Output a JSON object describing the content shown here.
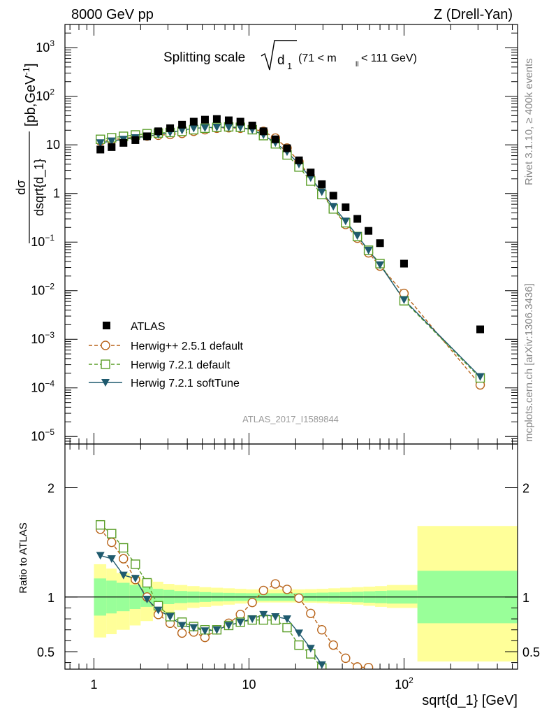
{
  "header": {
    "left": "8000 GeV pp",
    "right": "Z (Drell-Yan)"
  },
  "side_labels": {
    "rivet": "Rivet 3.1.10, ≥ 400k events",
    "mcplots": "mcplots.cern.ch [arXiv:1306.3436]"
  },
  "plot_title": {
    "prefix": "Splitting scale",
    "var": "d",
    "var_sub": "1",
    "range_open": "(71 < m",
    "range_sub": "ll",
    "range_close": " < 111 GeV)"
  },
  "analysis_id": "ATLAS_2017_I1589844",
  "colors": {
    "atlas": "#000000",
    "herwigpp": "#b8641a",
    "herwig721": "#5a9e28",
    "softtune": "#1f5a6e",
    "band_inner": "#99ff99",
    "band_outer": "#ffff99"
  },
  "chart_data": [
    {
      "type": "scatter",
      "panel": "main",
      "xlabel": "sqrt{d_1} [GeV]",
      "ylabel_num": "dσ",
      "ylabel_den": "dsqrt{d_1}",
      "ylabel_unit": "[pb,GeV",
      "ylabel_unit_sup": "-1",
      "ylabel_unit_close": "]",
      "xscale": "log",
      "yscale": "log",
      "xlim": [
        0.65,
        540
      ],
      "ylim": [
        7e-06,
        3000
      ],
      "x_ticks": [
        {
          "value": 1,
          "label": "1"
        },
        {
          "value": 10,
          "label": "10"
        },
        {
          "value": 100,
          "label": "10",
          "sup": "2"
        }
      ],
      "y_ticks": [
        {
          "value": 1e-05,
          "base": "10",
          "sup": "−5"
        },
        {
          "value": 0.0001,
          "base": "10",
          "sup": "−4"
        },
        {
          "value": 0.001,
          "base": "10",
          "sup": "−3"
        },
        {
          "value": 0.01,
          "base": "10",
          "sup": "−2"
        },
        {
          "value": 0.1,
          "base": "10",
          "sup": "−1"
        },
        {
          "value": 1,
          "base": "1",
          "sup": ""
        },
        {
          "value": 10,
          "base": "10",
          "sup": ""
        },
        {
          "value": 100,
          "base": "10",
          "sup": "2"
        },
        {
          "value": 1000,
          "base": "10",
          "sup": "3"
        }
      ],
      "legend_position": "bottom-left",
      "series": [
        {
          "name": "ATLAS",
          "marker": "square-filled",
          "x": [
            1.1,
            1.3,
            1.55,
            1.85,
            2.2,
            2.6,
            3.1,
            3.7,
            4.4,
            5.2,
            6.2,
            7.4,
            8.8,
            10.5,
            12.4,
            14.8,
            17.6,
            21,
            25,
            29.5,
            35,
            42,
            50,
            59,
            70,
            100,
            310
          ],
          "y": [
            8,
            9,
            11,
            12.5,
            15,
            19,
            22,
            26,
            30,
            33,
            34,
            32,
            30,
            25,
            19,
            13,
            8.5,
            4.8,
            2.7,
            1.55,
            0.9,
            0.52,
            0.3,
            0.17,
            0.095,
            0.036,
            0.0016
          ]
        },
        {
          "name": "Herwig++ 2.5.1 default",
          "marker": "circle-open",
          "line": "dashed",
          "x": [
            1.1,
            1.3,
            1.55,
            1.85,
            2.2,
            2.6,
            3.1,
            3.7,
            4.4,
            5.2,
            6.2,
            7.4,
            8.8,
            10.5,
            12.4,
            14.8,
            17.6,
            21,
            25,
            29.5,
            35,
            42,
            50,
            59,
            70,
            100,
            310
          ],
          "y": [
            12,
            12.8,
            13.5,
            14.5,
            15.2,
            15.8,
            16.3,
            17.2,
            19,
            20.5,
            22,
            22.5,
            22,
            21,
            19,
            13.8,
            8.6,
            4.5,
            2.1,
            1.05,
            0.48,
            0.23,
            0.12,
            0.06,
            0.032,
            0.0088,
            0.000115
          ]
        },
        {
          "name": "Herwig 7.2.1 default",
          "marker": "square-open",
          "line": "dashed",
          "x": [
            1.1,
            1.3,
            1.55,
            1.85,
            2.2,
            2.6,
            3.1,
            3.7,
            4.4,
            5.2,
            6.2,
            7.4,
            8.8,
            10.5,
            12.4,
            14.8,
            17.6,
            21,
            25,
            29.5,
            35,
            42,
            50,
            59,
            70,
            100,
            310
          ],
          "y": [
            13,
            14,
            15,
            16,
            17,
            17.5,
            18,
            19,
            20.5,
            22,
            23,
            23.5,
            23,
            20.5,
            15.5,
            10.5,
            6.2,
            3.5,
            1.8,
            0.95,
            0.48,
            0.25,
            0.13,
            0.068,
            0.036,
            0.0062,
            0.00016
          ]
        },
        {
          "name": "Herwig 7.2.1 softTune",
          "marker": "triangle-down-filled",
          "line": "solid",
          "x": [
            1.1,
            1.3,
            1.55,
            1.85,
            2.2,
            2.6,
            3.1,
            3.7,
            4.4,
            5.2,
            6.2,
            7.4,
            8.8,
            10.5,
            12.4,
            14.8,
            17.6,
            21,
            25,
            29.5,
            35,
            42,
            50,
            59,
            70,
            100,
            310
          ],
          "y": [
            11,
            12,
            13,
            14,
            15,
            16.5,
            18,
            20,
            22,
            22.5,
            23,
            23,
            22.8,
            20.5,
            16,
            11,
            7.2,
            4,
            2.1,
            1.08,
            0.54,
            0.27,
            0.135,
            0.068,
            0.034,
            0.0065,
            0.00017
          ]
        }
      ]
    },
    {
      "type": "line",
      "panel": "ratio",
      "ylabel": "Ratio to ATLAS",
      "xlabel": "sqrt{d_1} [GeV]",
      "xscale": "log",
      "xlim": [
        0.65,
        540
      ],
      "ylim": [
        0.34,
        2.4
      ],
      "y_ticks": [
        0.5,
        1,
        2
      ],
      "reference_line": 1,
      "bin_edges": [
        1,
        1.2,
        1.4,
        1.7,
        2.0,
        2.4,
        2.8,
        3.3,
        4.0,
        4.8,
        5.7,
        6.8,
        8.1,
        9.6,
        11.4,
        13.6,
        16.2,
        19.3,
        23,
        27.3,
        32.5,
        38.7,
        46,
        54.7,
        65.1,
        77.5,
        122,
        540
      ],
      "stat_band_half": [
        0.17,
        0.15,
        0.13,
        0.11,
        0.09,
        0.075,
        0.065,
        0.055,
        0.05,
        0.045,
        0.04,
        0.038,
        0.036,
        0.035,
        0.035,
        0.035,
        0.035,
        0.036,
        0.038,
        0.04,
        0.042,
        0.045,
        0.048,
        0.052,
        0.056,
        0.06,
        0.24
      ],
      "total_band_low": [
        0.63,
        0.66,
        0.7,
        0.74,
        0.78,
        0.82,
        0.86,
        0.88,
        0.9,
        0.91,
        0.92,
        0.93,
        0.94,
        0.945,
        0.95,
        0.95,
        0.95,
        0.95,
        0.948,
        0.945,
        0.94,
        0.935,
        0.93,
        0.92,
        0.91,
        0.9,
        0.41
      ],
      "total_band_high": [
        1.3,
        1.26,
        1.22,
        1.19,
        1.16,
        1.14,
        1.12,
        1.11,
        1.1,
        1.09,
        1.085,
        1.08,
        1.075,
        1.07,
        1.07,
        1.07,
        1.07,
        1.07,
        1.072,
        1.075,
        1.08,
        1.085,
        1.09,
        1.095,
        1.1,
        1.11,
        1.65
      ],
      "series": [
        {
          "name": "Herwig++ 2.5.1 default",
          "x": [
            1.1,
            1.3,
            1.55,
            1.85,
            2.2,
            2.6,
            3.1,
            3.7,
            4.4,
            5.2,
            6.2,
            7.4,
            8.8,
            10.5,
            12.4,
            14.8,
            17.6,
            21,
            25,
            29.5,
            35,
            42,
            50,
            59
          ],
          "y": [
            1.62,
            1.5,
            1.35,
            1.16,
            1.0,
            0.84,
            0.76,
            0.67,
            0.68,
            0.63,
            0.7,
            0.76,
            0.84,
            0.95,
            1.06,
            1.12,
            1.07,
            0.99,
            0.85,
            0.7,
            0.56,
            0.44,
            0.36,
            0.355
          ]
        },
        {
          "name": "Herwig 7.2.1 default",
          "x": [
            1.1,
            1.3,
            1.55,
            1.85,
            2.2,
            2.6,
            3.1,
            3.7,
            4.4,
            5.2,
            6.2,
            7.4,
            8.8,
            10.5,
            12.4,
            14.8,
            17.6,
            21,
            25,
            29.5
          ],
          "y": [
            1.66,
            1.58,
            1.45,
            1.3,
            1.13,
            0.92,
            0.82,
            0.77,
            0.73,
            0.7,
            0.7,
            0.74,
            0.77,
            0.79,
            0.79,
            0.79,
            0.72,
            0.56,
            0.48,
            0.35
          ]
        },
        {
          "name": "Herwig 7.2.1 softTune",
          "x": [
            1.1,
            1.3,
            1.55,
            1.85,
            2.2,
            2.6,
            3.1,
            3.7,
            4.4,
            5.2,
            6.2,
            7.4,
            8.8,
            10.5,
            12.4,
            14.8,
            17.6,
            21,
            25,
            29.5
          ],
          "y": [
            1.38,
            1.35,
            1.2,
            1.17,
            0.98,
            0.88,
            0.82,
            0.74,
            0.72,
            0.69,
            0.7,
            0.74,
            0.77,
            0.8,
            0.84,
            0.82,
            0.8,
            0.67,
            0.53,
            0.38
          ]
        }
      ]
    }
  ]
}
